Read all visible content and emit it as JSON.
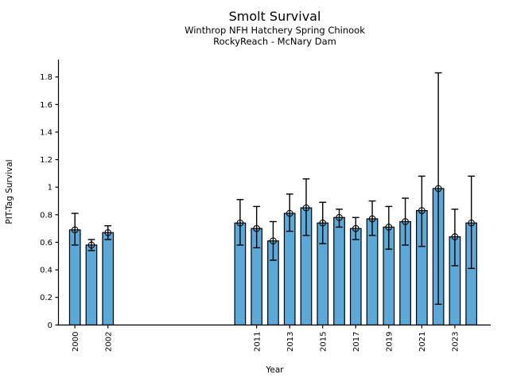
{
  "chart_data": {
    "type": "bar",
    "title": "Smolt Survival",
    "subtitle1": "Winthrop NFH Hatchery Spring Chinook",
    "subtitle2": "RockyReach - McNary Dam",
    "xlabel": "Year",
    "ylabel": "PIT-Tag Survival",
    "grid": false,
    "legend": "none",
    "ylim": [
      0,
      1.93
    ],
    "ytick_labels": [
      "0",
      "0.2",
      "0.4",
      "0.6",
      "0.8",
      "1",
      "1.2",
      "1.4",
      "1.6",
      "1.8"
    ],
    "xtick_labels": [
      "2000",
      "2002",
      "2011",
      "2013",
      "2015",
      "2017",
      "2019",
      "2021",
      "2023"
    ],
    "bar_color": "#5AA9D8",
    "bar_edge_color": "#000000",
    "errorbar_color": "#000000",
    "marker": "open-circle",
    "categories": [
      2000,
      2001,
      2002,
      2010,
      2011,
      2012,
      2013,
      2014,
      2015,
      2016,
      2017,
      2018,
      2019,
      2020,
      2021,
      2022,
      2023,
      2024
    ],
    "values": [
      0.69,
      0.58,
      0.67,
      0.74,
      0.7,
      0.61,
      0.81,
      0.85,
      0.74,
      0.78,
      0.7,
      0.77,
      0.71,
      0.75,
      0.83,
      0.99,
      0.64,
      0.74
    ],
    "error_low": [
      0.58,
      0.54,
      0.62,
      0.58,
      0.56,
      0.47,
      0.68,
      0.65,
      0.59,
      0.71,
      0.62,
      0.65,
      0.55,
      0.58,
      0.57,
      0.15,
      0.43,
      0.41
    ],
    "error_high": [
      0.81,
      0.62,
      0.72,
      0.91,
      0.86,
      0.75,
      0.95,
      1.06,
      0.89,
      0.84,
      0.78,
      0.9,
      0.86,
      0.92,
      1.08,
      1.83,
      0.84,
      1.08
    ]
  }
}
